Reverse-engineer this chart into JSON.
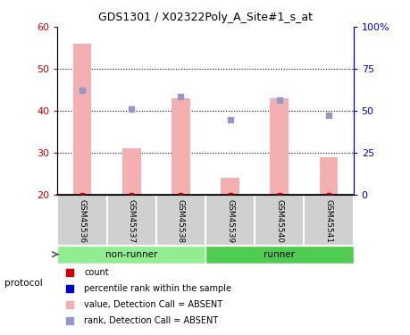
{
  "title": "GDS1301 / X02322Poly_A_Site#1_s_at",
  "samples": [
    "GSM45536",
    "GSM45537",
    "GSM45538",
    "GSM45539",
    "GSM45540",
    "GSM45541"
  ],
  "groups": [
    {
      "label": "non-runner",
      "start": 0,
      "end": 3,
      "color": "#90ee90"
    },
    {
      "label": "runner",
      "start": 3,
      "end": 6,
      "color": "#50cc50"
    }
  ],
  "bar_values": [
    56,
    31,
    43,
    24,
    43,
    29
  ],
  "rank_values": [
    45,
    40.5,
    43.5,
    38,
    42.5,
    39
  ],
  "ylim_left": [
    20,
    60
  ],
  "ylim_right": [
    0,
    100
  ],
  "yticks_left": [
    20,
    30,
    40,
    50,
    60
  ],
  "yticks_right": [
    0,
    25,
    50,
    75,
    100
  ],
  "ytick_labels_right": [
    "0",
    "25",
    "50",
    "75",
    "100%"
  ],
  "dotted_hlines": [
    30,
    40,
    50
  ],
  "bar_color": "#f4b0b0",
  "rank_color": "#9898c8",
  "left_axis_color": "#cc0000",
  "right_axis_color": "#0000cc",
  "legend_items": [
    {
      "label": "count",
      "color": "#cc0000"
    },
    {
      "label": "percentile rank within the sample",
      "color": "#0000cc"
    },
    {
      "label": "value, Detection Call = ABSENT",
      "color": "#f4b0b0"
    },
    {
      "label": "rank, Detection Call = ABSENT",
      "color": "#9898c8"
    }
  ],
  "protocol_label": "protocol"
}
